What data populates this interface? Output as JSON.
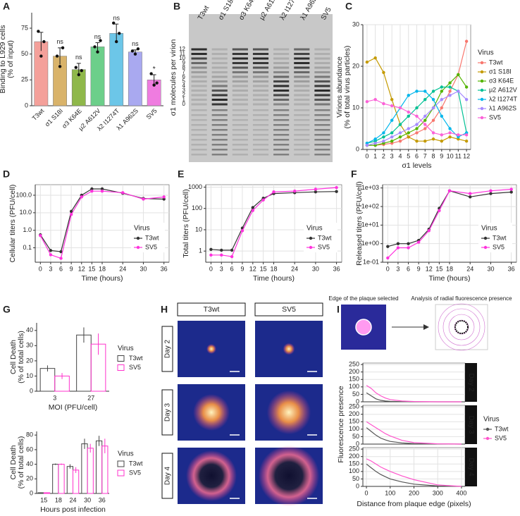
{
  "chart_data": [
    {
      "label": "A",
      "type": "bar",
      "categories": [
        "T3wt",
        "σ1 S18I",
        "σ3 K64E",
        "μ2 A612V",
        "λ2 I1274T",
        "λ1 A962S",
        "SV5"
      ],
      "values": [
        62,
        48,
        35,
        57,
        70,
        52,
        25
      ],
      "errors": [
        9,
        8,
        6,
        4,
        9,
        2,
        5
      ],
      "points": [
        [
          72,
          48,
          62
        ],
        [
          48,
          38,
          56
        ],
        [
          37,
          30,
          34
        ],
        [
          57,
          52,
          63
        ],
        [
          80,
          62,
          70
        ],
        [
          53,
          50,
          55
        ],
        [
          31,
          20,
          22
        ]
      ],
      "colors": [
        "#f4a09a",
        "#d9b36a",
        "#8fb84a",
        "#6ccf8a",
        "#6cc6e8",
        "#a9a9f0",
        "#ef7ce0"
      ],
      "annotations": [
        null,
        "ns",
        "ns",
        "ns",
        "ns",
        "ns",
        "*"
      ],
      "ylabel": [
        "Binding to L929 cells",
        "(% of input)"
      ],
      "ylim": [
        0,
        90
      ],
      "yticks": [
        0,
        25,
        50,
        75
      ],
      "grid": false
    },
    {
      "label": "B",
      "type": "gel",
      "lanes": [
        "T3wt",
        "σ1 S18I",
        "σ3 K64E",
        "μ2 A612V",
        "λ2 I1274T",
        "λ1 A962S",
        "SV5"
      ],
      "ylabel": "σ1 molecules per virion",
      "band_labels": [
        12,
        11,
        10,
        9,
        8,
        7,
        6,
        5,
        4,
        3,
        2,
        1,
        0
      ]
    },
    {
      "label": "C",
      "type": "line",
      "x": [
        0,
        1,
        2,
        3,
        4,
        5,
        6,
        7,
        8,
        9,
        10,
        11,
        12
      ],
      "series": [
        {
          "name": "T3wt",
          "color": "#f8766d",
          "values": [
            1,
            1,
            1.2,
            1.5,
            2,
            3,
            4,
            5,
            7,
            10,
            14,
            18,
            26
          ]
        },
        {
          "name": "σ1 S18I",
          "color": "#c49a00",
          "values": [
            21,
            22,
            18.5,
            12,
            6,
            3,
            2,
            2,
            2.5,
            2,
            3,
            2.5,
            2
          ]
        },
        {
          "name": "σ3 K64E",
          "color": "#53b400",
          "values": [
            1,
            1,
            1.5,
            2,
            3,
            4,
            5,
            7,
            10,
            14,
            16,
            18,
            15
          ]
        },
        {
          "name": "μ2 A612V",
          "color": "#00c094",
          "values": [
            1.5,
            2,
            3,
            4,
            6,
            8,
            10,
            12,
            14,
            15,
            15,
            14,
            4
          ]
        },
        {
          "name": "λ2 I1274T",
          "color": "#00b6eb",
          "values": [
            1.5,
            2.5,
            4,
            7,
            10,
            13,
            14,
            14,
            12,
            8,
            5,
            3,
            4
          ]
        },
        {
          "name": "λ1 A962S",
          "color": "#a58aff",
          "values": [
            1,
            1.5,
            2,
            3,
            4,
            5,
            6,
            8,
            10,
            12,
            13,
            14,
            12
          ]
        },
        {
          "name": "SV5",
          "color": "#fb61d7",
          "values": [
            11.5,
            12,
            11,
            10.5,
            10,
            9,
            8,
            6,
            4,
            3.5,
            4,
            3.5,
            3.5
          ]
        }
      ],
      "xlabel": "σ1 levels",
      "ylabel": [
        "Virions abundance",
        "(% of total virus particles)"
      ],
      "xlim": [
        -0.5,
        12.5
      ],
      "xticks": [
        0,
        1,
        2,
        3,
        4,
        5,
        6,
        7,
        8,
        9,
        10,
        11,
        12
      ],
      "ylim": [
        0,
        30
      ],
      "yticks": [
        0,
        10,
        20,
        30
      ],
      "grid": true,
      "legend_title": "Virus",
      "legend_position": "right"
    },
    {
      "label": "D",
      "type": "line",
      "x": [
        0,
        3,
        6,
        9,
        12,
        15,
        18,
        24,
        30,
        36
      ],
      "series": [
        {
          "name": "T3wt",
          "color": "#333333",
          "values": [
            0.55,
            0.07,
            0.06,
            12,
            100,
            230,
            230,
            130,
            65,
            60
          ]
        },
        {
          "name": "SV5",
          "color": "#ff33dd",
          "values": [
            0.5,
            0.04,
            0.025,
            8,
            80,
            170,
            170,
            140,
            60,
            80
          ]
        }
      ],
      "xlabel": "Time (hours)",
      "ylabel": [
        "Cellular titers (PFU/cell)"
      ],
      "xlim": [
        -1.5,
        37.5
      ],
      "xticks": [
        0,
        3,
        6,
        9,
        12,
        15,
        18,
        24,
        30,
        36
      ],
      "log_y": true,
      "ylim": [
        0.015,
        400
      ],
      "yticks": [
        {
          "value": 0.1,
          "label": "0.1"
        },
        {
          "value": 1,
          "label": "1.0"
        },
        {
          "value": 10,
          "label": "10.0"
        },
        {
          "value": 100,
          "label": "100.0"
        }
      ],
      "grid": true,
      "legend_title": "Virus",
      "legend_position": "inside-bottom-right"
    },
    {
      "label": "E",
      "type": "line",
      "x": [
        0,
        3,
        6,
        9,
        12,
        15,
        18,
        24,
        30,
        36
      ],
      "series": [
        {
          "name": "T3wt",
          "color": "#333333",
          "values": [
            1.2,
            1.1,
            1.1,
            12,
            110,
            300,
            500,
            550,
            600,
            620
          ]
        },
        {
          "name": "SV5",
          "color": "#ff33dd",
          "values": [
            0.65,
            0.65,
            0.55,
            9,
            80,
            250,
            600,
            650,
            800,
            950
          ]
        }
      ],
      "xlabel": "Time (hours)",
      "ylabel": [
        "Total titers (PFU/cell)"
      ],
      "xlim": [
        -1.5,
        37.5
      ],
      "xticks": [
        0,
        3,
        6,
        9,
        12,
        15,
        18,
        24,
        30,
        36
      ],
      "log_y": true,
      "ylim": [
        0.3,
        1300
      ],
      "yticks": [
        1,
        10,
        100,
        1000
      ],
      "grid": true,
      "legend_title": "Virus",
      "legend_position": "inside-bottom-right"
    },
    {
      "label": "F",
      "type": "line",
      "x": [
        0,
        3,
        6,
        9,
        12,
        15,
        18,
        24,
        30,
        36
      ],
      "series": [
        {
          "name": "T3wt",
          "color": "#333333",
          "values": [
            0.7,
            1,
            1,
            1.5,
            6,
            80,
            700,
            330,
            500,
            600
          ]
        },
        {
          "name": "SV5",
          "color": "#ff33dd",
          "values": [
            0.17,
            0.6,
            0.6,
            1.2,
            5,
            60,
            700,
            500,
            700,
            850
          ]
        }
      ],
      "xlabel": "Time (hours)",
      "ylabel": [
        "Released titers (PFU/cell)"
      ],
      "xlim": [
        -1.5,
        37.5
      ],
      "xticks": [
        0,
        3,
        6,
        9,
        12,
        15,
        18,
        24,
        30,
        36
      ],
      "log_y": true,
      "ylim": [
        0.1,
        1500
      ],
      "yticks": [
        {
          "value": 0.1,
          "label": "1e-01"
        },
        {
          "value": 1,
          "label": "1e+00"
        },
        {
          "value": 10,
          "label": "1e+01"
        },
        {
          "value": 100,
          "label": "1e+02"
        },
        {
          "value": 1000,
          "label": "1e+03"
        }
      ],
      "grid": true,
      "legend_title": "Virus",
      "legend_position": "inside-bottom-right"
    },
    {
      "label": "G",
      "type": "grouped_bar",
      "categories": [
        "3",
        "27"
      ],
      "series": [
        {
          "name": "T3wt",
          "color": "#444444",
          "values": [
            15,
            37
          ],
          "errors": [
            2,
            5
          ]
        },
        {
          "name": "SV5",
          "color": "#ff33cc",
          "values": [
            10,
            31
          ],
          "errors": [
            2,
            7
          ]
        }
      ],
      "xlabel": "MOI (PFU/cell)",
      "ylabel": [
        "Cell Death",
        "(% of total cells)"
      ],
      "ylim": [
        0,
        45
      ],
      "yticks": [
        0,
        10,
        20,
        30,
        40
      ],
      "grid": false,
      "legend_title": "Virus"
    },
    {
      "type": "grouped_bar",
      "categories": [
        "15",
        "18",
        "24",
        "30",
        "36"
      ],
      "series": [
        {
          "name": "T3wt",
          "color": "#444444",
          "values": [
            1,
            40,
            37,
            68,
            72
          ],
          "errors": [
            0.5,
            1,
            3,
            7,
            7
          ]
        },
        {
          "name": "SV5",
          "color": "#ff33cc",
          "values": [
            1,
            40,
            32,
            62,
            65
          ],
          "errors": [
            0.5,
            1,
            4,
            6,
            10
          ]
        }
      ],
      "xlabel": "Hours post infection",
      "ylabel": [
        "Cell Death",
        "(% of total cells)"
      ],
      "ylim": [
        0,
        85
      ],
      "yticks": [
        0,
        20,
        40,
        60,
        80
      ],
      "grid": false,
      "legend_title": "Virus"
    },
    {
      "label": "H",
      "type": "image_grid",
      "columns": [
        "T3wt",
        "SV5"
      ],
      "rows": [
        "Day 2",
        "Day 3",
        "Day 4"
      ]
    },
    {
      "label": "I",
      "type": "faceted_line",
      "image_captions": [
        "Edge of the plaque selected",
        "Analysis of radial fluorescence presence"
      ],
      "x": [
        0,
        20,
        40,
        60,
        80,
        100,
        150,
        200,
        300,
        400
      ],
      "facets": [
        {
          "label": "Day 2",
          "series": [
            {
              "name": "T3wt",
              "color": "#555555",
              "values": [
                60,
                40,
                20,
                10,
                5,
                3,
                1,
                0,
                0,
                0
              ]
            },
            {
              "name": "SV5",
              "color": "#ff55cc",
              "values": [
                110,
                90,
                60,
                40,
                25,
                15,
                5,
                2,
                0,
                0
              ]
            }
          ]
        },
        {
          "label": "Day 3",
          "series": [
            {
              "name": "T3wt",
              "color": "#555555",
              "values": [
                110,
                85,
                60,
                40,
                28,
                18,
                8,
                3,
                1,
                0
              ]
            },
            {
              "name": "SV5",
              "color": "#ff55cc",
              "values": [
                150,
                130,
                110,
                90,
                70,
                55,
                25,
                10,
                2,
                0
              ]
            }
          ]
        },
        {
          "label": "Day 4",
          "series": [
            {
              "name": "T3wt",
              "color": "#555555",
              "values": [
                150,
                125,
                100,
                80,
                65,
                50,
                30,
                15,
                3,
                0
              ]
            },
            {
              "name": "SV5",
              "color": "#ff55cc",
              "values": [
                185,
                170,
                150,
                130,
                115,
                100,
                70,
                45,
                10,
                0
              ]
            }
          ]
        }
      ],
      "xlabel": "Distance from plaque edge (pixels)",
      "ylabel": "Fluorescence presence",
      "xlim": [
        -15,
        415
      ],
      "xticks": [
        0,
        100,
        200,
        300,
        400
      ],
      "ylim": [
        0,
        260
      ],
      "yticks": [
        0,
        50,
        100,
        150,
        200,
        250
      ],
      "grid": true,
      "legend_title": "Virus"
    }
  ]
}
